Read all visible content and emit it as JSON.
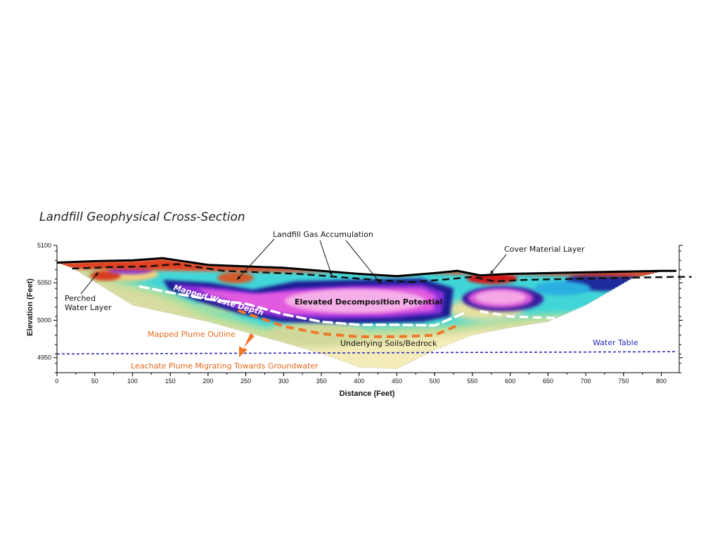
{
  "chart_data": {
    "type": "heatmap",
    "title": "Landfill Geophysical Cross-Section",
    "xlabel": "Distance (Feet)",
    "ylabel": "Elevation (Feet)",
    "xlim": [
      0,
      820
    ],
    "ylim": [
      4930,
      5100
    ],
    "x_ticks": [
      0,
      50,
      100,
      150,
      200,
      250,
      300,
      350,
      400,
      450,
      500,
      550,
      600,
      650,
      700,
      750,
      800
    ],
    "y_ticks": [
      4950,
      5000,
      5050,
      5100
    ],
    "grid": false,
    "ground_surface": {
      "x": [
        0,
        50,
        100,
        140,
        200,
        300,
        400,
        450,
        500,
        530,
        560,
        600,
        700,
        800,
        820
      ],
      "y": [
        5077,
        5079,
        5080,
        5083,
        5074,
        5070,
        5062,
        5059,
        5063,
        5066,
        5060,
        5062,
        5064,
        5066,
        5066
      ]
    },
    "section_boundary": {
      "x": [
        20,
        100,
        200,
        300,
        360,
        400,
        450,
        500,
        550,
        600,
        650,
        700,
        760,
        800
      ],
      "y": [
        5070,
        5020,
        4998,
        4970,
        4952,
        4937,
        4935,
        4960,
        4980,
        4990,
        4998,
        5020,
        5055,
        5065
      ]
    },
    "water_table": {
      "elevation": 4955
    },
    "mapped_waste_depth": {
      "x": [
        110,
        150,
        200,
        250,
        300,
        350,
        400,
        450,
        500,
        540
      ],
      "y": [
        5045,
        5037,
        5028,
        5022,
        5008,
        4998,
        4994,
        4994,
        4993,
        5010
      ]
    },
    "mapped_plume_outline": {
      "x": [
        240,
        300,
        350,
        400,
        450,
        500,
        530
      ],
      "y": [
        5013,
        4992,
        4982,
        4978,
        4978,
        4980,
        4993
      ]
    },
    "annotations": {
      "landfill_gas": "Landfill Gas Accumulation",
      "cover_material": "Cover Material Layer",
      "perched_water": [
        "Perched",
        "Water Layer"
      ],
      "mapped_waste_depth": "Mapped Waste Depth",
      "decomposition": "Elevated Decomposition Potential",
      "plume_outline": "Mapped Plume Outline",
      "water_table": "Water Table",
      "underlying": "Underlying Soils/Bedrock",
      "leachate": "Leachate Plume Migrating Towards Groundwater"
    },
    "colors": {
      "plume": "#f07828",
      "water_table": "#2a2ab8",
      "decomposition": "#f4a6e6",
      "cover": "#d01818",
      "bedrock": "#f4ecb8"
    }
  }
}
